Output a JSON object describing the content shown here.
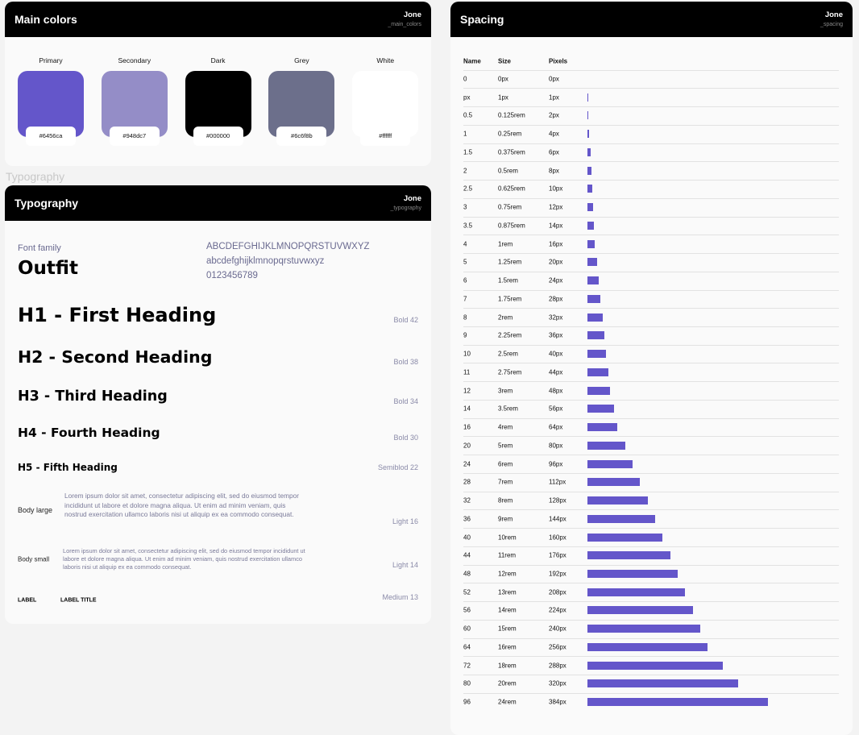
{
  "colors": {
    "title": "Main colors",
    "user": "Jone",
    "slug": "_main_colors",
    "swatches": [
      {
        "name": "Primary",
        "hex": "#6456ca"
      },
      {
        "name": "Secondary",
        "hex": "#948dc7"
      },
      {
        "name": "Dark",
        "hex": "#000000"
      },
      {
        "name": "Grey",
        "hex": "#6c6f8b"
      },
      {
        "name": "White",
        "hex": "#ffffff"
      }
    ]
  },
  "typography_label": "Typography",
  "typography": {
    "title": "Typography",
    "user": "Jone",
    "slug": "_typography",
    "font_family_label": "Font family",
    "font_family": "Outfit",
    "uppercase": "ABCDEFGHIJKLMNOPQRSTUVWXYZ",
    "lowercase": "abcdefghijklmnopqrstuvwxyz",
    "digits": "0123456789",
    "headings": [
      {
        "text": "H1 - First Heading",
        "spec": "Bold 42"
      },
      {
        "text": "H2 - Second Heading",
        "spec": "Bold 38"
      },
      {
        "text": "H3 - Third Heading",
        "spec": "Bold 34"
      },
      {
        "text": "H4 - Fourth Heading",
        "spec": "Bold 30"
      },
      {
        "text": "H5 - Fifth Heading",
        "spec": "Semiblod 22"
      }
    ],
    "body": [
      {
        "label": "Body large",
        "text": "Lorem ipsum dolor sit amet, consectetur adipiscing elit, sed do eiusmod tempor incididunt ut labore et dolore magna aliqua. Ut enim ad minim veniam, quis nostrud exercitation ullamco laboris nisi ut aliquip ex ea commodo consequat.",
        "spec": "Light 16"
      },
      {
        "label": "Body small",
        "text": "Lorem ipsum dolor sit amet, consectetur adipiscing elit, sed do eiusmod tempor incididunt ut labore et dolore magna aliqua. Ut enim ad minim veniam, quis nostrud exercitation ullamco laboris nisi ut aliquip ex ea commodo consequat.",
        "spec": "Light 14"
      }
    ],
    "label": {
      "label": "LABEL",
      "title": "LABEL TITLE",
      "spec": "Medium 13"
    }
  },
  "spacing": {
    "title": "Spacing",
    "user": "Jone",
    "slug": "_spacing",
    "color": "#6456ca",
    "columns": [
      "Name",
      "Size",
      "Pixels"
    ],
    "rows": [
      {
        "name": "0",
        "size": "0px",
        "pixels": "0px",
        "value": 0
      },
      {
        "name": "px",
        "size": "1px",
        "pixels": "1px",
        "value": 1
      },
      {
        "name": "0.5",
        "size": "0.125rem",
        "pixels": "2px",
        "value": 2
      },
      {
        "name": "1",
        "size": "0.25rem",
        "pixels": "4px",
        "value": 4
      },
      {
        "name": "1.5",
        "size": "0.375rem",
        "pixels": "6px",
        "value": 6
      },
      {
        "name": "2",
        "size": "0.5rem",
        "pixels": "8px",
        "value": 8
      },
      {
        "name": "2.5",
        "size": "0.625rem",
        "pixels": "10px",
        "value": 10
      },
      {
        "name": "3",
        "size": "0.75rem",
        "pixels": "12px",
        "value": 12
      },
      {
        "name": "3.5",
        "size": "0.875rem",
        "pixels": "14px",
        "value": 14
      },
      {
        "name": "4",
        "size": "1rem",
        "pixels": "16px",
        "value": 16
      },
      {
        "name": "5",
        "size": "1.25rem",
        "pixels": "20px",
        "value": 20
      },
      {
        "name": "6",
        "size": "1.5rem",
        "pixels": "24px",
        "value": 24
      },
      {
        "name": "7",
        "size": "1.75rem",
        "pixels": "28px",
        "value": 28
      },
      {
        "name": "8",
        "size": "2rem",
        "pixels": "32px",
        "value": 32
      },
      {
        "name": "9",
        "size": "2.25rem",
        "pixels": "36px",
        "value": 36
      },
      {
        "name": "10",
        "size": "2.5rem",
        "pixels": "40px",
        "value": 40
      },
      {
        "name": "11",
        "size": "2.75rem",
        "pixels": "44px",
        "value": 44
      },
      {
        "name": "12",
        "size": "3rem",
        "pixels": "48px",
        "value": 48
      },
      {
        "name": "14",
        "size": "3.5rem",
        "pixels": "56px",
        "value": 56
      },
      {
        "name": "16",
        "size": "4rem",
        "pixels": "64px",
        "value": 64
      },
      {
        "name": "20",
        "size": "5rem",
        "pixels": "80px",
        "value": 80
      },
      {
        "name": "24",
        "size": "6rem",
        "pixels": "96px",
        "value": 96
      },
      {
        "name": "28",
        "size": "7rem",
        "pixels": "112px",
        "value": 112
      },
      {
        "name": "32",
        "size": "8rem",
        "pixels": "128px",
        "value": 128
      },
      {
        "name": "36",
        "size": "9rem",
        "pixels": "144px",
        "value": 144
      },
      {
        "name": "40",
        "size": "10rem",
        "pixels": "160px",
        "value": 160
      },
      {
        "name": "44",
        "size": "11rem",
        "pixels": "176px",
        "value": 176
      },
      {
        "name": "48",
        "size": "12rem",
        "pixels": "192px",
        "value": 192
      },
      {
        "name": "52",
        "size": "13rem",
        "pixels": "208px",
        "value": 208
      },
      {
        "name": "56",
        "size": "14rem",
        "pixels": "224px",
        "value": 224
      },
      {
        "name": "60",
        "size": "15rem",
        "pixels": "240px",
        "value": 240
      },
      {
        "name": "64",
        "size": "16rem",
        "pixels": "256px",
        "value": 256
      },
      {
        "name": "72",
        "size": "18rem",
        "pixels": "288px",
        "value": 288
      },
      {
        "name": "80",
        "size": "20rem",
        "pixels": "320px",
        "value": 320
      },
      {
        "name": "96",
        "size": "24rem",
        "pixels": "384px",
        "value": 384
      }
    ]
  }
}
